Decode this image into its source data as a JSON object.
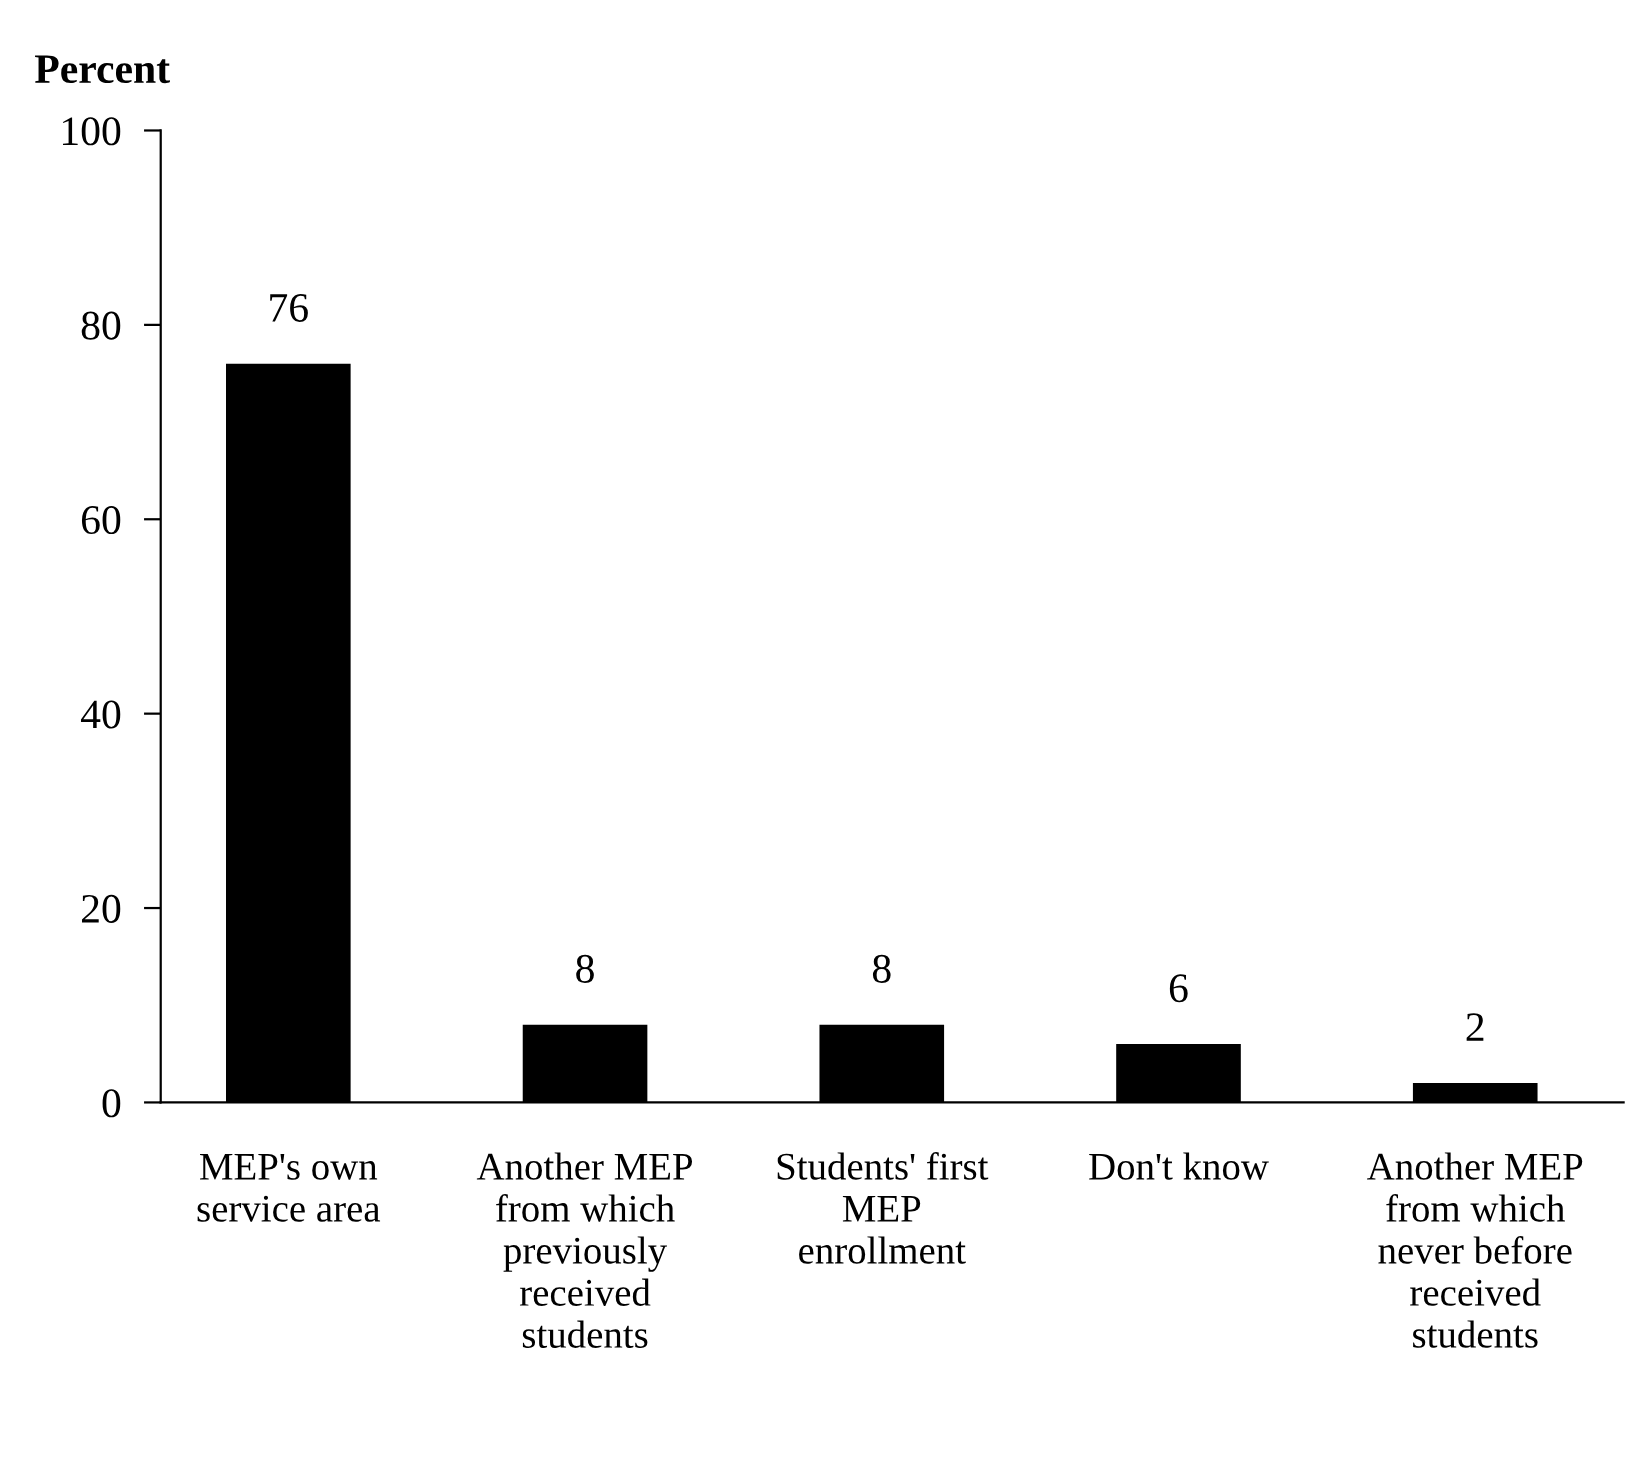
{
  "chart_data": {
    "type": "bar",
    "ylabel": "Percent",
    "categories": [
      "MEP's own\nservice area",
      "Another MEP\nfrom which\npreviously\nreceived\nstudents",
      "Students' first\nMEP\nenrollment",
      "Don't know",
      "Another MEP\nfrom which\nnever before\nreceived\nstudents"
    ],
    "values": [
      76,
      8,
      8,
      6,
      2
    ],
    "color": "#000000",
    "data_labels": true,
    "ylim": [
      0,
      100
    ],
    "yticks": [
      0,
      20,
      40,
      60,
      80,
      100
    ],
    "grid": false,
    "legend": false
  }
}
